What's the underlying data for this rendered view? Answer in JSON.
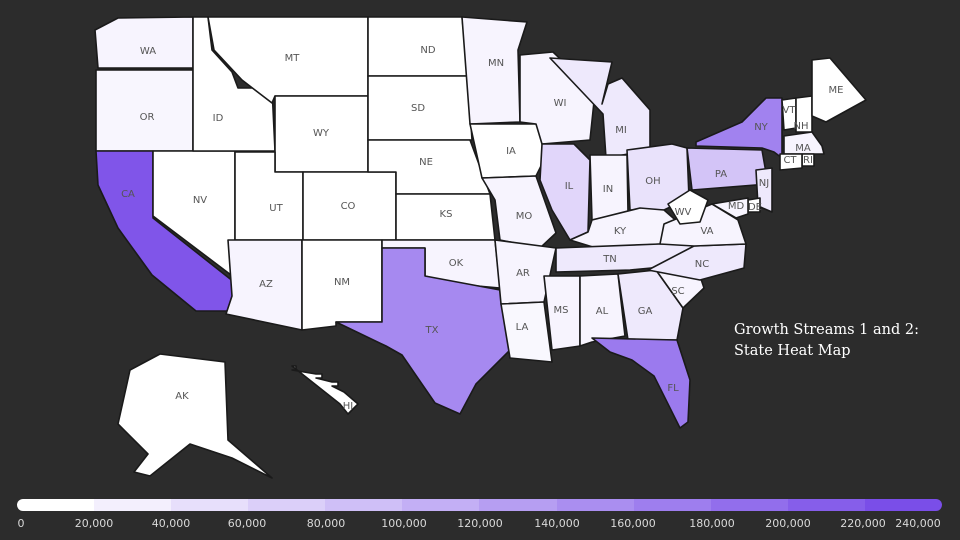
{
  "caption": {
    "line1": "Growth Streams 1 and 2:",
    "line2": "State Heat Map"
  },
  "colors": {
    "background": "#2c2c2c",
    "low": "#ffffff",
    "high": "#7a4ee8",
    "border": "#1a1a1a"
  },
  "legend": {
    "min": 0,
    "max": 240000,
    "ticks": [
      "0",
      "20,000",
      "40,000",
      "60,000",
      "80,000",
      "100,000",
      "120,000",
      "140,000",
      "160,000",
      "180,000",
      "200,000",
      "220,000",
      "240,000"
    ],
    "steps": 12
  },
  "states": [
    {
      "abbr": "WA",
      "value": 15000
    },
    {
      "abbr": "OR",
      "value": 12000
    },
    {
      "abbr": "CA",
      "value": 230000
    },
    {
      "abbr": "NV",
      "value": 0
    },
    {
      "abbr": "ID",
      "value": 0
    },
    {
      "abbr": "MT",
      "value": 0
    },
    {
      "abbr": "WY",
      "value": 0
    },
    {
      "abbr": "UT",
      "value": 0
    },
    {
      "abbr": "CO",
      "value": 0
    },
    {
      "abbr": "AZ",
      "value": 15000
    },
    {
      "abbr": "NM",
      "value": 0
    },
    {
      "abbr": "ND",
      "value": 0
    },
    {
      "abbr": "SD",
      "value": 0
    },
    {
      "abbr": "NE",
      "value": 0
    },
    {
      "abbr": "KS",
      "value": 0
    },
    {
      "abbr": "OK",
      "value": 15000
    },
    {
      "abbr": "TX",
      "value": 160000
    },
    {
      "abbr": "MN",
      "value": 15000
    },
    {
      "abbr": "IA",
      "value": 0
    },
    {
      "abbr": "MO",
      "value": 15000
    },
    {
      "abbr": "AR",
      "value": 15000
    },
    {
      "abbr": "LA",
      "value": 10000
    },
    {
      "abbr": "WI",
      "value": 15000
    },
    {
      "abbr": "IL",
      "value": 55000
    },
    {
      "abbr": "MI",
      "value": 30000
    },
    {
      "abbr": "IN",
      "value": 15000
    },
    {
      "abbr": "OH",
      "value": 40000
    },
    {
      "abbr": "KY",
      "value": 15000
    },
    {
      "abbr": "TN",
      "value": 30000
    },
    {
      "abbr": "MS",
      "value": 15000
    },
    {
      "abbr": "AL",
      "value": 15000
    },
    {
      "abbr": "GA",
      "value": 30000
    },
    {
      "abbr": "FL",
      "value": 180000
    },
    {
      "abbr": "SC",
      "value": 15000
    },
    {
      "abbr": "NC",
      "value": 30000
    },
    {
      "abbr": "VA",
      "value": 15000
    },
    {
      "abbr": "WV",
      "value": 0
    },
    {
      "abbr": "PA",
      "value": 80000
    },
    {
      "abbr": "NY",
      "value": 170000
    },
    {
      "abbr": "VT",
      "value": 0
    },
    {
      "abbr": "NH",
      "value": 0
    },
    {
      "abbr": "ME",
      "value": 0
    },
    {
      "abbr": "MA",
      "value": 15000
    },
    {
      "abbr": "RI",
      "value": 0
    },
    {
      "abbr": "CT",
      "value": 0
    },
    {
      "abbr": "NJ",
      "value": 30000
    },
    {
      "abbr": "DE",
      "value": 0
    },
    {
      "abbr": "MD",
      "value": 15000
    },
    {
      "abbr": "AK",
      "value": 0
    },
    {
      "abbr": "HI",
      "value": 0
    }
  ]
}
